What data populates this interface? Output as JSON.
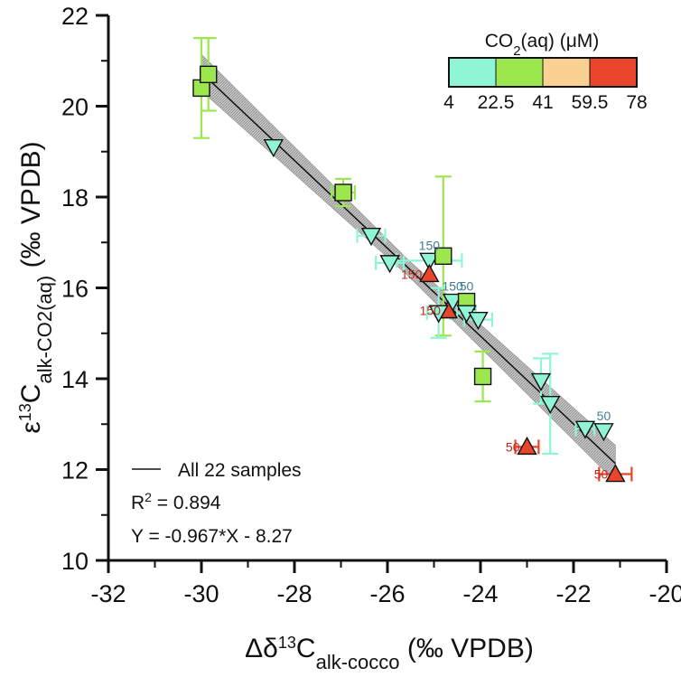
{
  "chart_data": {
    "type": "scatter",
    "xlabel": {
      "main": "Δδ",
      "sup": "13",
      "letter": "C",
      "sub": "alk-cocco",
      "unit": " (‰ VPDB)"
    },
    "ylabel": {
      "main": "ε",
      "sup": "13",
      "letter": "C",
      "sub": "alk-CO2(aq)",
      "unit": " (‰ VPDB)"
    },
    "xlim": [
      -32,
      -20
    ],
    "ylim": [
      10,
      22
    ],
    "xticks": [
      "-32",
      "-30",
      "-28",
      "-26",
      "-24",
      "-22",
      "-20"
    ],
    "yticks": [
      "10",
      "12",
      "14",
      "16",
      "18",
      "20",
      "22"
    ],
    "grid": false,
    "colorbar": {
      "title_main": "CO",
      "title_sub": "2",
      "title_rest": "(aq) (μM)",
      "ticks": [
        "4",
        "22.5",
        "41",
        "59.5",
        "78"
      ],
      "colors": [
        "#8ff5d6",
        "#9ce64e",
        "#fad190",
        "#e8452a"
      ]
    },
    "fit": {
      "label": "All 22 samples",
      "r2_prefix": "R",
      "r2_sup": "2",
      "r2_value": " = 0.894",
      "equation": "Y = -0.967*X - 8.27",
      "slope": -0.967,
      "intercept": -8.27,
      "x_range": [
        -30.0,
        -21.1
      ],
      "ci_half_width": 0.25
    },
    "points": [
      {
        "x": -30.0,
        "y": 20.4,
        "marker": "square",
        "color": "#9ce64e",
        "yerr": 1.1
      },
      {
        "x": -29.85,
        "y": 20.7,
        "marker": "square",
        "color": "#9ce64e",
        "yerr": 0.8
      },
      {
        "x": -28.45,
        "y": 19.1,
        "marker": "triangle-down",
        "color": "#8ff5d6"
      },
      {
        "x": -26.95,
        "y": 18.1,
        "marker": "square",
        "color": "#9ce64e",
        "yerr": 0.3,
        "xerr": 0.25
      },
      {
        "x": -26.35,
        "y": 17.15,
        "marker": "triangle-down",
        "color": "#8ff5d6",
        "xerr": 0.3
      },
      {
        "x": -25.95,
        "y": 16.55,
        "marker": "triangle-down",
        "color": "#8ff5d6",
        "xerr": 0.3
      },
      {
        "x": -25.1,
        "y": 16.6,
        "marker": "triangle-down",
        "color": "#8ff5d6",
        "xerr": 0.7,
        "label": "150",
        "label_color": "#3f7f96"
      },
      {
        "x": -25.1,
        "y": 16.3,
        "marker": "triangle-up",
        "color": "#e8452a",
        "label": "150",
        "label_color": "#c0281c"
      },
      {
        "x": -24.8,
        "y": 16.7,
        "marker": "square",
        "color": "#9ce64e",
        "yerr": 1.75
      },
      {
        "x": -24.6,
        "y": 15.7,
        "marker": "triangle-down",
        "color": "#8ff5d6",
        "label": "150",
        "label_color": "#3f7f96"
      },
      {
        "x": -24.7,
        "y": 15.5,
        "marker": "triangle-up",
        "color": "#e8452a",
        "label": "150",
        "label_color": "#c0281c"
      },
      {
        "x": -24.3,
        "y": 15.7,
        "marker": "square",
        "color": "#9ce64e",
        "label": "50",
        "label_color": "#3f7f96"
      },
      {
        "x": -24.9,
        "y": 15.45,
        "marker": "triangle-down",
        "color": "#8ff5d6",
        "yerr": 0.55,
        "xerr": 0.25
      },
      {
        "x": -24.3,
        "y": 15.45,
        "marker": "triangle-down",
        "color": "#8ff5d6",
        "xerr": 0.2
      },
      {
        "x": -24.05,
        "y": 15.3,
        "marker": "triangle-down",
        "color": "#8ff5d6",
        "xerr": 0.3
      },
      {
        "x": -23.95,
        "y": 14.05,
        "marker": "square",
        "color": "#9ce64e",
        "yerr": 0.55
      },
      {
        "x": -22.7,
        "y": 13.95,
        "marker": "triangle-down",
        "color": "#8ff5d6",
        "yerr": 0.5
      },
      {
        "x": -22.5,
        "y": 13.45,
        "marker": "triangle-down",
        "color": "#8ff5d6",
        "yerr": 1.1
      },
      {
        "x": -21.75,
        "y": 12.9,
        "marker": "triangle-down",
        "color": "#8ff5d6",
        "xerr": 0.2
      },
      {
        "x": -21.35,
        "y": 12.85,
        "marker": "triangle-down",
        "color": "#8ff5d6",
        "label": "50",
        "label_color": "#3f7f96"
      },
      {
        "x": -23.0,
        "y": 12.5,
        "marker": "triangle-up",
        "color": "#e8452a",
        "xerr": 0.25,
        "label": "50",
        "label_color": "#c0281c"
      },
      {
        "x": -21.1,
        "y": 11.9,
        "marker": "triangle-up",
        "color": "#e8452a",
        "xerr": 0.35,
        "label": "50",
        "label_color": "#c0281c"
      }
    ]
  }
}
